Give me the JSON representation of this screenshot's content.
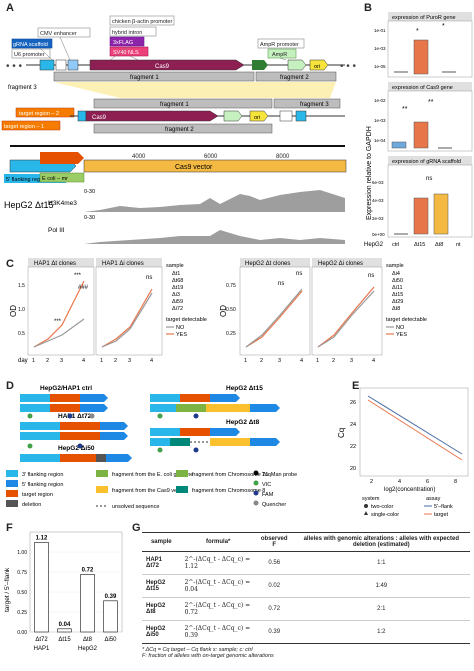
{
  "panels": {
    "a": "A",
    "b": "B",
    "c": "C",
    "d": "D",
    "e": "E",
    "f": "F",
    "g": "G"
  },
  "panel_a": {
    "tags": [
      "CMV enhancer",
      "gRNA scaffold",
      "U6 promoter",
      "chicken β-actin promoter",
      "hybrid intron",
      "3xFLAG",
      "SV40 NLS",
      "AmpR promoter",
      "AmpR"
    ],
    "cas9": "Cas9",
    "ori": "ori",
    "fragment1": "fragment 1",
    "fragment2": "fragment 2",
    "fragment3": "fragment 3",
    "target1": "target region – 1",
    "target2": "target region – 2",
    "scale": [
      "2000",
      "4000",
      "6000",
      "8000"
    ],
    "flank5": "5' flanking region",
    "ecoli": "E coli – mr",
    "cas9_vector": "Cas9 vector",
    "cell_line": "HepG2 Δt15",
    "tracks": [
      {
        "name": "H3K4me3",
        "range": "0-30"
      },
      {
        "name": "Pol III",
        "range": "0-30"
      }
    ]
  },
  "panel_b": {
    "ylabel": "Expression relative to GAPDH",
    "row_label": "HepG2",
    "categories": [
      "ctrl",
      "Δt15",
      "Δt8",
      "nt"
    ],
    "plots": [
      {
        "title": "expression of PuroR gene",
        "ticks": [
          "1e-01",
          "1e-03",
          "1e-05"
        ],
        "sig": [
          "*",
          "*"
        ]
      },
      {
        "title": "expression of Cas9 gene",
        "ticks": [
          "1e-02",
          "1e-03",
          "1e-04"
        ],
        "sig": [
          "**",
          "**"
        ]
      },
      {
        "title": "expression of gRNA scaffold",
        "ticks": [
          "6e-03",
          "4e-03",
          "2e-03",
          "0e+00"
        ],
        "sig": [
          "ns"
        ]
      }
    ]
  },
  "panel_c": {
    "ylabel": "OD",
    "xlabel": "day",
    "left_titles": [
      "HAP1 Δt clones",
      "HAP1 Δi clones"
    ],
    "right_titles": [
      "HepG2 Δt clones",
      "HepG2 Δi clones"
    ],
    "x_ticks": [
      "1",
      "2",
      "3",
      "4"
    ],
    "left_y_ticks": [
      "1.5",
      "1.0",
      "0.5"
    ],
    "right_y_ticks": [
      "0.75",
      "0.50",
      "0.25"
    ],
    "left_legend": {
      "title": "sample",
      "items": [
        "Δt1",
        "Δt68",
        "Δt19",
        "Δi3",
        "Δi59",
        "Δi72"
      ],
      "detect_title": "target detectable",
      "detect": [
        "NO",
        "YES"
      ]
    },
    "right_legend": {
      "title": "sample",
      "items": [
        "Δi4",
        "Δi50",
        "Δi11",
        "Δt15",
        "Δt29",
        "Δt8"
      ],
      "detect_title": "target detectable",
      "detect": [
        "NO",
        "YES"
      ]
    },
    "annot": [
      "***",
      "***",
      "###",
      "###",
      "ns",
      "ns",
      "ns",
      "ns"
    ]
  },
  "panel_d": {
    "constructs": [
      "HepG2/HAP1 ctrl",
      "HAP1 Δt72",
      "HepG2 Δi50",
      "HepG2 Δt15",
      "HepG2 Δt8"
    ],
    "legend": [
      {
        "label": "3' flanking region",
        "color": "#29b6e8"
      },
      {
        "label": "5' flanking region",
        "color": "#1e88e5"
      },
      {
        "label": "target region",
        "color": "#e65100"
      },
      {
        "label": "deletion",
        "color": "#555555"
      },
      {
        "label": "fragment from the E. coli genome",
        "color": "#7cb342"
      },
      {
        "label": "fragment from the Cas9 vector",
        "color": "#fbc02d"
      },
      {
        "label": "fragment from Chromosome 21",
        "color": "#7cb342"
      },
      {
        "label": "fragment from Chromosome 8",
        "color": "#00897b"
      },
      {
        "label": "unsolved sequence",
        "color": "#333333"
      },
      {
        "label": "TaqMan probe",
        "color": "#000000"
      },
      {
        "label": "VIC",
        "color": "#43a047"
      },
      {
        "label": "FAM",
        "color": "#1e3a8a"
      },
      {
        "label": "Quencher",
        "color": "#888888"
      }
    ]
  },
  "panel_e": {
    "ylabel": "Cq",
    "xlabel": "log2(concentration)",
    "x_ticks": [
      "2",
      "4",
      "6",
      "8"
    ],
    "y_ticks": [
      "26",
      "24",
      "22",
      "20"
    ],
    "legend_system": {
      "title": "system",
      "items": [
        "two-color",
        "single-color"
      ]
    },
    "legend_assay": {
      "title": "assay",
      "items": [
        "5'–flank",
        "target"
      ]
    }
  },
  "chart_data": [
    {
      "type": "bar",
      "title": "",
      "ylabel": "target / 5'–flank",
      "categories": [
        "Δt72",
        "Δt15",
        "Δt8",
        "Δi50"
      ],
      "values": [
        1.12,
        0.04,
        0.72,
        0.39
      ],
      "groups": [
        "HAP1",
        "HepG2"
      ],
      "ylim": [
        0,
        1.25
      ],
      "ticks": [
        "1.00",
        "0.75",
        "0.50",
        "0.25",
        "0.00"
      ]
    }
  ],
  "panel_g": {
    "headers": [
      "sample",
      "formula*",
      "observed F",
      "alleles with genomic alterations : alleles with expected deletion (estimated)"
    ],
    "rows": [
      {
        "sample": "HAP1 Δt72",
        "formula": "2^-(ΔCq_t - ΔCq_c) = 1.12",
        "observed": "0.56",
        "ratio": "1:1"
      },
      {
        "sample": "HepG2 Δt15",
        "formula": "2^-(ΔCq_t - ΔCq_c) = 0.04",
        "observed": "0.02",
        "ratio": "1:49"
      },
      {
        "sample": "HepG2 Δt8",
        "formula": "2^-(ΔCq_t - ΔCq_c) = 0.72",
        "observed": "0.72",
        "ratio": "2:1"
      },
      {
        "sample": "HepG2 Δi50",
        "formula": "2^-(ΔCq_t - ΔCq_c) = 0.39",
        "observed": "0.39",
        "ratio": "1:2"
      }
    ],
    "footnote1": "* ΔCq = Cq target – Cq flank   s: sample; c: ctrl",
    "footnote2": "F: fraction of alleles with on-target genomic alterations"
  }
}
